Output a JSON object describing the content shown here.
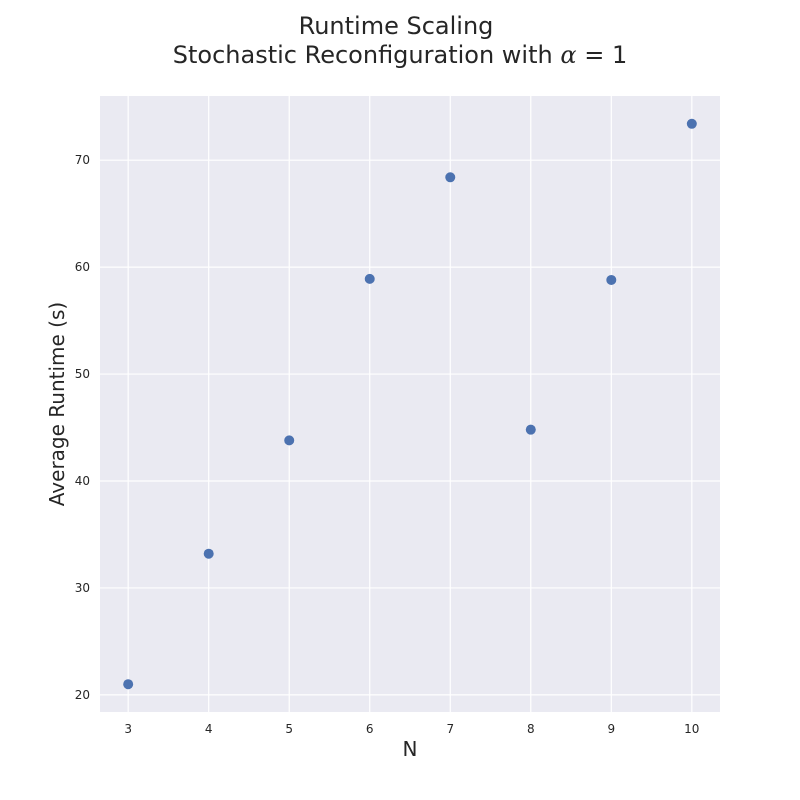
{
  "chart_data": {
    "type": "scatter",
    "title_line1": "Runtime Scaling",
    "title_line2_prefix": "Stochastic Reconfiguration with ",
    "title_math_symbol": "α",
    "title_math_rest": " = 1",
    "xlabel": "N",
    "ylabel": "Average Runtime (s)",
    "x": [
      3,
      4,
      5,
      6,
      7,
      8,
      9,
      10
    ],
    "y": [
      21.0,
      33.2,
      43.8,
      58.9,
      68.4,
      44.8,
      58.8,
      73.4
    ],
    "xlim": [
      2.65,
      10.35
    ],
    "ylim": [
      18.4,
      76.0
    ],
    "xticks": [
      3,
      4,
      5,
      6,
      7,
      8,
      9,
      10
    ],
    "yticks": [
      20,
      30,
      40,
      50,
      60,
      70
    ],
    "grid": true,
    "colors": {
      "background": "#eaeaf2",
      "grid": "#ffffff",
      "point": "#4c72b0",
      "text": "#262626"
    }
  }
}
